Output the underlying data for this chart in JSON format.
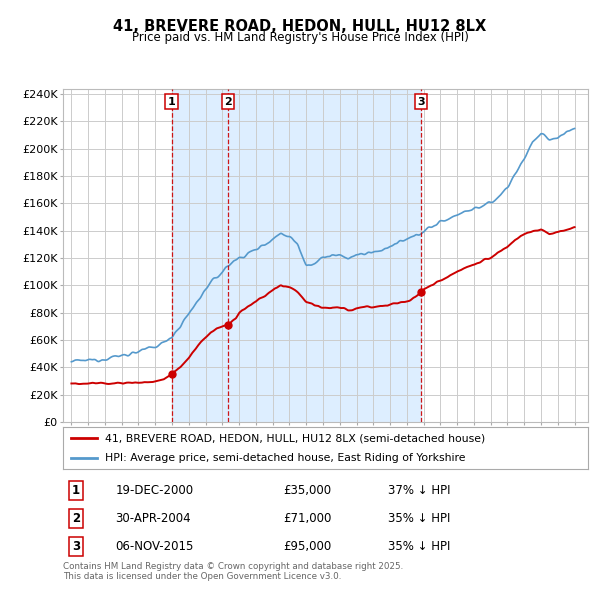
{
  "title": "41, BREVERE ROAD, HEDON, HULL, HU12 8LX",
  "subtitle": "Price paid vs. HM Land Registry's House Price Index (HPI)",
  "transactions": [
    {
      "date": 2000.97,
      "price": 35000,
      "label": "1",
      "date_str": "19-DEC-2000",
      "pct": "37% ↓ HPI"
    },
    {
      "date": 2004.33,
      "price": 71000,
      "label": "2",
      "date_str": "30-APR-2004",
      "pct": "35% ↓ HPI"
    },
    {
      "date": 2015.85,
      "price": 95000,
      "label": "3",
      "date_str": "06-NOV-2015",
      "pct": "35% ↓ HPI"
    }
  ],
  "legend_line1": "41, BREVERE ROAD, HEDON, HULL, HU12 8LX (semi-detached house)",
  "legend_line2": "HPI: Average price, semi-detached house, East Riding of Yorkshire",
  "footer": "Contains HM Land Registry data © Crown copyright and database right 2025.\nThis data is licensed under the Open Government Licence v3.0.",
  "red_color": "#cc0000",
  "blue_color": "#5599cc",
  "shade_color": "#ddeeff",
  "marker_box_color": "#cc0000",
  "grid_color": "#cccccc",
  "bg_color": "#ffffff",
  "ylim": [
    0,
    244000
  ],
  "xlim": [
    1994.5,
    2025.8
  ],
  "yticks": [
    0,
    20000,
    40000,
    60000,
    80000,
    100000,
    120000,
    140000,
    160000,
    180000,
    200000,
    220000,
    240000
  ],
  "xticks": [
    1995,
    1996,
    1997,
    1998,
    1999,
    2000,
    2001,
    2002,
    2003,
    2004,
    2005,
    2006,
    2007,
    2008,
    2009,
    2010,
    2011,
    2012,
    2013,
    2014,
    2015,
    2016,
    2017,
    2018,
    2019,
    2020,
    2021,
    2022,
    2023,
    2024,
    2025
  ]
}
